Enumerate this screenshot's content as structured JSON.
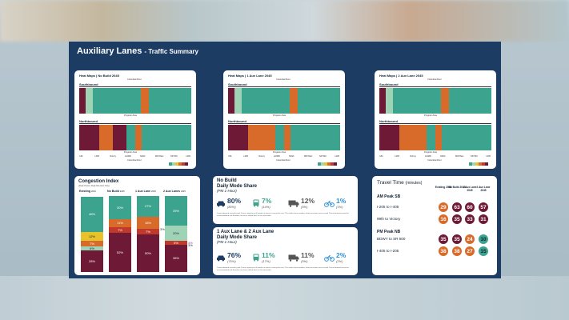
{
  "page": {
    "title": "Auxiliary Lanes",
    "subtitle": "- Traffic Summary"
  },
  "colors": {
    "green": "#3ca38e",
    "maroon": "#6e1935",
    "orange": "#d86b2a",
    "yellow": "#e8c22a",
    "red": "#c0392b",
    "lightgreen": "#9fd3b6",
    "navy": "#1d3c63"
  },
  "heatmaps": [
    {
      "title": "Heat Maps | No Build 2045"
    },
    {
      "title": "Heat Maps | 1 Aux Lane 2045"
    },
    {
      "title": "Heat Maps | 2 Aux Lane 2045"
    }
  ],
  "heatmap_labels": {
    "southbound": "Southbound",
    "northbound": "Northbound",
    "river_top": "Columbia River",
    "river_bottom": "Columbia River",
    "program_area": "Program Area",
    "axis": [
      "I-84",
      "I-405",
      "Victory",
      "HUMD",
      "SR14",
      "Mill Plain",
      "SR 500",
      "I-205"
    ]
  },
  "congestion": {
    "title": "Congestion Index",
    "subtitle": "(Peak Period, Peak Direction Only)",
    "columns": [
      {
        "label": "Existing",
        "year": "2019",
        "values": [
          "46%",
          "12%",
          "7%",
          "6%",
          "28%"
        ]
      },
      {
        "label": "No Build",
        "year": "2045",
        "values": [
          "30%",
          "11%",
          "7%",
          "52%"
        ]
      },
      {
        "label": "1 Aux Lane",
        "year": "2045",
        "values": [
          "27%",
          "16%",
          "7%",
          "50%"
        ]
      },
      {
        "label": "2 Aux Lanes",
        "year": "2045",
        "values": [
          "39%",
          "20%",
          "5%",
          "36%"
        ]
      }
    ],
    "side_labels": [
      "3%",
      "4%",
      "3%"
    ]
  },
  "mode_share_nobuild": {
    "title": "No Build",
    "title2": "Daily Mode Share",
    "period": "(PM 1-Hour)",
    "modes": [
      {
        "icon": "car-icon",
        "pct": "80%",
        "existing": "(80%)"
      },
      {
        "icon": "bus-icon",
        "pct": "7%",
        "existing": "(14%)"
      },
      {
        "icon": "truck-icon",
        "pct": "12%",
        "existing": "(5%)"
      },
      {
        "icon": "bike-icon",
        "pct": "1%",
        "existing": "(1%)"
      }
    ],
    "note": "Transit demand exceeds peak 1-hour capacity on all modes of transit crossing the river. The mode share numbers shown assumes excess peak 1-hour demand cannot be accommodated and therefore has been shifted back to the auto mode."
  },
  "mode_share_aux": {
    "title": "1 Aux Lane & 2 Aux Lane",
    "title2": "Daily Mode Share",
    "period": "(PM 1-Hour)",
    "modes": [
      {
        "icon": "car-icon",
        "pct": "76%",
        "existing": "(76%)"
      },
      {
        "icon": "bus-icon",
        "pct": "11%",
        "existing": "(17%)"
      },
      {
        "icon": "truck-icon",
        "pct": "11%",
        "existing": "(5%)"
      },
      {
        "icon": "bike-icon",
        "pct": "2%",
        "existing": "(2%)"
      }
    ],
    "note": "Transit demand exceeds peak 1-hour capacity on all modes of transit crossing the river. The mode share numbers shown assumes excess peak 1-hour demand cannot be accommodated and therefore has been shifted back to the auto mode."
  },
  "travel_time": {
    "title": "Travel Time",
    "unit": "(minutes)",
    "columns": [
      "Existing 2019",
      "No Build 2045",
      "1 Aux Lane 2045",
      "2 Aux Lane 2045"
    ],
    "sections": [
      {
        "label": "AM Peak SB",
        "rows": [
          {
            "route": "I-205 to I-405",
            "values": [
              "29",
              "63",
              "60",
              "57"
            ]
          },
          {
            "route": "99th to Victory",
            "values": [
              "16",
              "35",
              "33",
              "31"
            ]
          }
        ]
      },
      {
        "label": "PM Peak NB",
        "rows": [
          {
            "route": "BDWY to SR 500",
            "values": [
              "35",
              "35",
              "24",
              "10"
            ]
          },
          {
            "route": "I-405 to I-205",
            "values": [
              "38",
              "38",
              "27",
              "15"
            ]
          }
        ]
      }
    ]
  }
}
